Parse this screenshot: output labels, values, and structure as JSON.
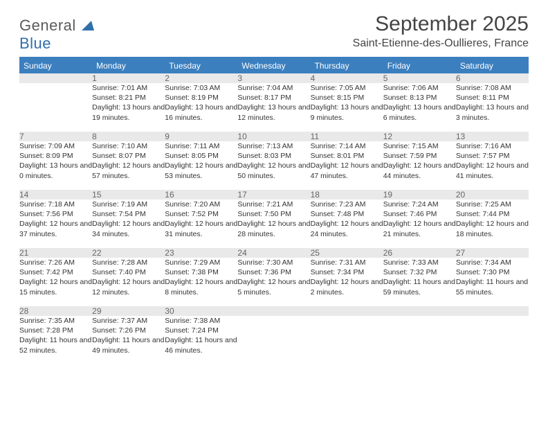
{
  "brand": {
    "part1": "General",
    "part2": "Blue"
  },
  "title": "September 2025",
  "location": "Saint-Etienne-des-Oullieres, France",
  "colors": {
    "accent": "#3b7fbf",
    "header_bg": "#e9e9e9",
    "text": "#333333"
  },
  "weekdays": [
    "Sunday",
    "Monday",
    "Tuesday",
    "Wednesday",
    "Thursday",
    "Friday",
    "Saturday"
  ],
  "weeks": [
    {
      "nums": [
        "",
        "1",
        "2",
        "3",
        "4",
        "5",
        "6"
      ],
      "cells": [
        null,
        {
          "sunrise": "Sunrise: 7:01 AM",
          "sunset": "Sunset: 8:21 PM",
          "daylight": "Daylight: 13 hours and 19 minutes."
        },
        {
          "sunrise": "Sunrise: 7:03 AM",
          "sunset": "Sunset: 8:19 PM",
          "daylight": "Daylight: 13 hours and 16 minutes."
        },
        {
          "sunrise": "Sunrise: 7:04 AM",
          "sunset": "Sunset: 8:17 PM",
          "daylight": "Daylight: 13 hours and 12 minutes."
        },
        {
          "sunrise": "Sunrise: 7:05 AM",
          "sunset": "Sunset: 8:15 PM",
          "daylight": "Daylight: 13 hours and 9 minutes."
        },
        {
          "sunrise": "Sunrise: 7:06 AM",
          "sunset": "Sunset: 8:13 PM",
          "daylight": "Daylight: 13 hours and 6 minutes."
        },
        {
          "sunrise": "Sunrise: 7:08 AM",
          "sunset": "Sunset: 8:11 PM",
          "daylight": "Daylight: 13 hours and 3 minutes."
        }
      ]
    },
    {
      "nums": [
        "7",
        "8",
        "9",
        "10",
        "11",
        "12",
        "13"
      ],
      "cells": [
        {
          "sunrise": "Sunrise: 7:09 AM",
          "sunset": "Sunset: 8:09 PM",
          "daylight": "Daylight: 13 hours and 0 minutes."
        },
        {
          "sunrise": "Sunrise: 7:10 AM",
          "sunset": "Sunset: 8:07 PM",
          "daylight": "Daylight: 12 hours and 57 minutes."
        },
        {
          "sunrise": "Sunrise: 7:11 AM",
          "sunset": "Sunset: 8:05 PM",
          "daylight": "Daylight: 12 hours and 53 minutes."
        },
        {
          "sunrise": "Sunrise: 7:13 AM",
          "sunset": "Sunset: 8:03 PM",
          "daylight": "Daylight: 12 hours and 50 minutes."
        },
        {
          "sunrise": "Sunrise: 7:14 AM",
          "sunset": "Sunset: 8:01 PM",
          "daylight": "Daylight: 12 hours and 47 minutes."
        },
        {
          "sunrise": "Sunrise: 7:15 AM",
          "sunset": "Sunset: 7:59 PM",
          "daylight": "Daylight: 12 hours and 44 minutes."
        },
        {
          "sunrise": "Sunrise: 7:16 AM",
          "sunset": "Sunset: 7:57 PM",
          "daylight": "Daylight: 12 hours and 41 minutes."
        }
      ]
    },
    {
      "nums": [
        "14",
        "15",
        "16",
        "17",
        "18",
        "19",
        "20"
      ],
      "cells": [
        {
          "sunrise": "Sunrise: 7:18 AM",
          "sunset": "Sunset: 7:56 PM",
          "daylight": "Daylight: 12 hours and 37 minutes."
        },
        {
          "sunrise": "Sunrise: 7:19 AM",
          "sunset": "Sunset: 7:54 PM",
          "daylight": "Daylight: 12 hours and 34 minutes."
        },
        {
          "sunrise": "Sunrise: 7:20 AM",
          "sunset": "Sunset: 7:52 PM",
          "daylight": "Daylight: 12 hours and 31 minutes."
        },
        {
          "sunrise": "Sunrise: 7:21 AM",
          "sunset": "Sunset: 7:50 PM",
          "daylight": "Daylight: 12 hours and 28 minutes."
        },
        {
          "sunrise": "Sunrise: 7:23 AM",
          "sunset": "Sunset: 7:48 PM",
          "daylight": "Daylight: 12 hours and 24 minutes."
        },
        {
          "sunrise": "Sunrise: 7:24 AM",
          "sunset": "Sunset: 7:46 PM",
          "daylight": "Daylight: 12 hours and 21 minutes."
        },
        {
          "sunrise": "Sunrise: 7:25 AM",
          "sunset": "Sunset: 7:44 PM",
          "daylight": "Daylight: 12 hours and 18 minutes."
        }
      ]
    },
    {
      "nums": [
        "21",
        "22",
        "23",
        "24",
        "25",
        "26",
        "27"
      ],
      "cells": [
        {
          "sunrise": "Sunrise: 7:26 AM",
          "sunset": "Sunset: 7:42 PM",
          "daylight": "Daylight: 12 hours and 15 minutes."
        },
        {
          "sunrise": "Sunrise: 7:28 AM",
          "sunset": "Sunset: 7:40 PM",
          "daylight": "Daylight: 12 hours and 12 minutes."
        },
        {
          "sunrise": "Sunrise: 7:29 AM",
          "sunset": "Sunset: 7:38 PM",
          "daylight": "Daylight: 12 hours and 8 minutes."
        },
        {
          "sunrise": "Sunrise: 7:30 AM",
          "sunset": "Sunset: 7:36 PM",
          "daylight": "Daylight: 12 hours and 5 minutes."
        },
        {
          "sunrise": "Sunrise: 7:31 AM",
          "sunset": "Sunset: 7:34 PM",
          "daylight": "Daylight: 12 hours and 2 minutes."
        },
        {
          "sunrise": "Sunrise: 7:33 AM",
          "sunset": "Sunset: 7:32 PM",
          "daylight": "Daylight: 11 hours and 59 minutes."
        },
        {
          "sunrise": "Sunrise: 7:34 AM",
          "sunset": "Sunset: 7:30 PM",
          "daylight": "Daylight: 11 hours and 55 minutes."
        }
      ]
    },
    {
      "nums": [
        "28",
        "29",
        "30",
        "",
        "",
        "",
        ""
      ],
      "cells": [
        {
          "sunrise": "Sunrise: 7:35 AM",
          "sunset": "Sunset: 7:28 PM",
          "daylight": "Daylight: 11 hours and 52 minutes."
        },
        {
          "sunrise": "Sunrise: 7:37 AM",
          "sunset": "Sunset: 7:26 PM",
          "daylight": "Daylight: 11 hours and 49 minutes."
        },
        {
          "sunrise": "Sunrise: 7:38 AM",
          "sunset": "Sunset: 7:24 PM",
          "daylight": "Daylight: 11 hours and 46 minutes."
        },
        null,
        null,
        null,
        null
      ]
    }
  ]
}
